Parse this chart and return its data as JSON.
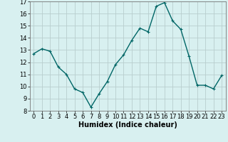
{
  "x": [
    0,
    1,
    2,
    3,
    4,
    5,
    6,
    7,
    8,
    9,
    10,
    11,
    12,
    13,
    14,
    15,
    16,
    17,
    18,
    19,
    20,
    21,
    22,
    23
  ],
  "y": [
    12.7,
    13.1,
    12.9,
    11.6,
    11.0,
    9.8,
    9.5,
    8.3,
    9.4,
    10.4,
    11.8,
    12.6,
    13.8,
    14.8,
    14.5,
    16.6,
    16.9,
    15.4,
    14.7,
    12.5,
    10.1,
    10.1,
    9.8,
    10.9
  ],
  "line_color": "#006666",
  "marker": "+",
  "marker_size": 3,
  "bg_color": "#d8f0f0",
  "grid_color": "#b8cece",
  "xlabel": "Humidex (Indice chaleur)",
  "ylim": [
    8,
    17
  ],
  "xlim_min": -0.5,
  "xlim_max": 23.5,
  "yticks": [
    8,
    9,
    10,
    11,
    12,
    13,
    14,
    15,
    16,
    17
  ],
  "xticks": [
    0,
    1,
    2,
    3,
    4,
    5,
    6,
    7,
    8,
    9,
    10,
    11,
    12,
    13,
    14,
    15,
    16,
    17,
    18,
    19,
    20,
    21,
    22,
    23
  ],
  "tick_fontsize": 6,
  "xlabel_fontsize": 7,
  "line_width": 1.0
}
